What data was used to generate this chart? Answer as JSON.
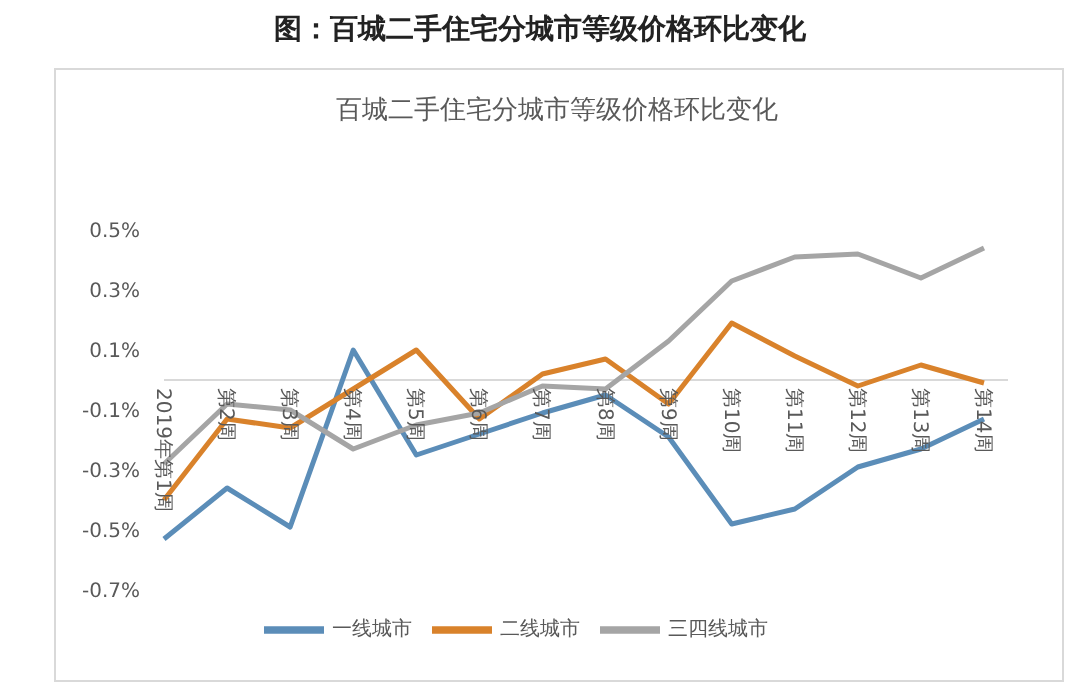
{
  "chart_data": {
    "type": "line",
    "title": "图：百城二手住宅分城市等级价格环比变化",
    "subtitle": "百城二手住宅分城市等级价格环比变化",
    "categories": [
      "2019年第1周",
      "第2周",
      "第3周",
      "第4周",
      "第5周",
      "第6周",
      "第7周",
      "第8周",
      "第9周",
      "第10周",
      "第11周",
      "第12周",
      "第13周",
      "第14周"
    ],
    "series": [
      {
        "name": "一线城市",
        "color": "#5b8db8",
        "values": [
          -0.53,
          -0.36,
          -0.49,
          0.1,
          -0.25,
          -0.18,
          -0.11,
          -0.05,
          -0.19,
          -0.48,
          -0.43,
          -0.29,
          -0.23,
          -0.13
        ]
      },
      {
        "name": "二线城市",
        "color": "#d9822b",
        "values": [
          -0.4,
          -0.13,
          -0.16,
          -0.03,
          0.1,
          -0.13,
          0.02,
          0.07,
          -0.08,
          0.19,
          0.08,
          -0.02,
          0.05,
          -0.01
        ]
      },
      {
        "name": "三四线城市",
        "color": "#a5a5a5",
        "values": [
          -0.28,
          -0.08,
          -0.1,
          -0.23,
          -0.15,
          -0.11,
          -0.02,
          -0.03,
          0.13,
          0.33,
          0.41,
          0.42,
          0.34,
          0.44
        ]
      }
    ],
    "ylim": [
      -0.7,
      0.5
    ],
    "yticks": [
      {
        "value": -0.7,
        "label": "-0.7%"
      },
      {
        "value": -0.5,
        "label": "-0.5%"
      },
      {
        "value": -0.3,
        "label": "-0.3%"
      },
      {
        "value": -0.1,
        "label": "-0.1%"
      },
      {
        "value": 0.1,
        "label": "0.1%"
      },
      {
        "value": 0.3,
        "label": "0.3%"
      },
      {
        "value": 0.5,
        "label": "0.5%"
      }
    ],
    "legend": "bottom",
    "marker": "none",
    "line_style": "solid"
  }
}
